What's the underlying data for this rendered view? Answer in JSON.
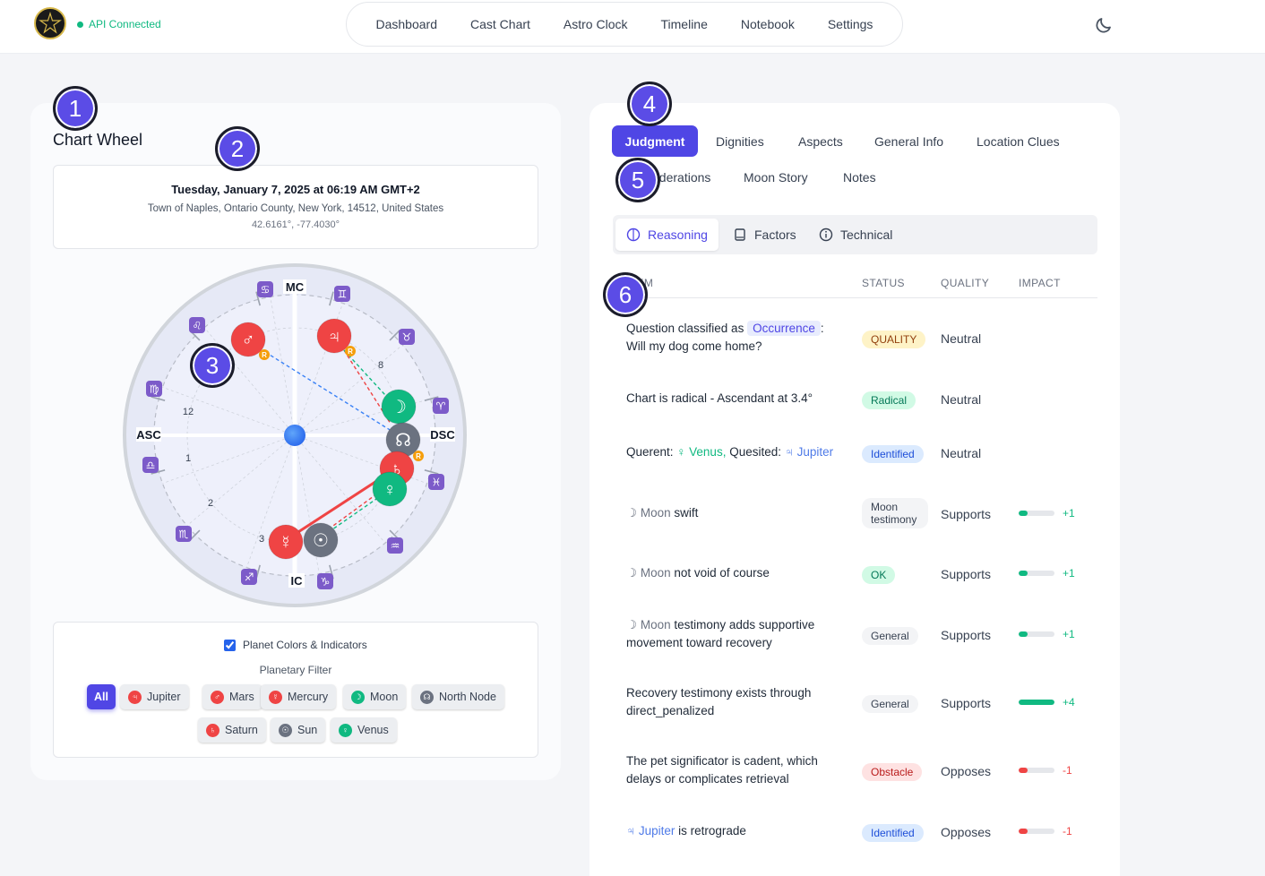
{
  "app": {
    "api_status": "API Connected",
    "nav": [
      "Dashboard",
      "Cast Chart",
      "Astro Clock",
      "Timeline",
      "Notebook",
      "Settings"
    ],
    "theme_icon": "moon-icon"
  },
  "chart": {
    "title": "Chart Wheel",
    "date": "Tuesday, January 7, 2025 at 06:19 AM GMT+2",
    "location": "Town of Naples, Ontario County, New York, 14512, United States",
    "coords": "42.6161°, -77.4030°",
    "angles": {
      "mc": "MC",
      "ic": "IC",
      "asc": "ASC",
      "dsc": "DSC"
    },
    "houses": [
      "12",
      "1",
      "2",
      "3",
      "8"
    ],
    "planets": [
      {
        "name": "Mars",
        "glyph": "♂",
        "color": "#ef4444",
        "retro": true
      },
      {
        "name": "Jupiter",
        "glyph": "♃",
        "color": "#ef4444",
        "retro": true
      },
      {
        "name": "Moon",
        "glyph": "☽",
        "color": "#10b981",
        "retro": false
      },
      {
        "name": "North Node",
        "glyph": "☊",
        "color": "#6b7280",
        "retro": false
      },
      {
        "name": "Saturn",
        "glyph": "♄",
        "color": "#ef4444",
        "retro": true
      },
      {
        "name": "Venus",
        "glyph": "♀",
        "color": "#10b981",
        "retro": false
      },
      {
        "name": "Mercury",
        "glyph": "☿",
        "color": "#ef4444",
        "retro": false
      },
      {
        "name": "Sun",
        "glyph": "☉",
        "color": "#6b7280",
        "retro": false
      }
    ],
    "zodiac": [
      "♋",
      "♊",
      "♉",
      "♈",
      "♓",
      "♒",
      "♑",
      "♐",
      "♏",
      "♎",
      "♍",
      "♌"
    ],
    "retro_label": "R",
    "planet_colors_label": "Planet Colors & Indicators",
    "planetary_filter_label": "Planetary Filter",
    "filter_all": "All",
    "filters": [
      {
        "label": "Jupiter",
        "glyph": "♃",
        "color": "#ef4444"
      },
      {
        "label": "Mars",
        "glyph": "♂",
        "color": "#ef4444"
      },
      {
        "label": "Mercury",
        "glyph": "☿",
        "color": "#ef4444"
      },
      {
        "label": "Moon",
        "glyph": "☽",
        "color": "#10b981"
      },
      {
        "label": "North Node",
        "glyph": "☊",
        "color": "#6b7280"
      },
      {
        "label": "Saturn",
        "glyph": "♄",
        "color": "#ef4444"
      },
      {
        "label": "Sun",
        "glyph": "☉",
        "color": "#6b7280"
      },
      {
        "label": "Venus",
        "glyph": "♀",
        "color": "#10b981"
      }
    ]
  },
  "tabs": {
    "active": "Judgment",
    "row1": [
      "Dignities",
      "Aspects",
      "General Info",
      "Location Clues"
    ],
    "row2": [
      "Considerations",
      "Moon Story",
      "Notes"
    ]
  },
  "subtabs": [
    "Reasoning",
    "Factors",
    "Technical"
  ],
  "table": {
    "headers": [
      "ITEM",
      "STATUS",
      "QUALITY",
      "IMPACT"
    ],
    "rows": [
      {
        "pre": "Question classified as ",
        "hl": "Occurrence",
        "post": ": Will my dog come home?",
        "status": "QUALITY",
        "status_bg": "#fef3c7",
        "status_fg": "#92400e",
        "quality": "Neutral",
        "impact": null,
        "impact_label": ""
      },
      {
        "text": "Chart is radical - Ascendant at 3.4°",
        "status": "Radical",
        "status_bg": "#d1fae5",
        "status_fg": "#047857",
        "quality": "Neutral",
        "impact": null,
        "impact_label": ""
      },
      {
        "querent_label": "Querent: ",
        "querent": "♀ Venus,",
        "quesited_label": " Quesited: ",
        "quesited": "♃ Jupiter",
        "status": "Identified",
        "status_bg": "#dbeafe",
        "status_fg": "#1d4ed8",
        "quality": "Neutral",
        "impact": null,
        "impact_label": ""
      },
      {
        "moon": "☽ Moon",
        "text": " swift",
        "status": "Moon testimony",
        "status_bg": "#f3f4f6",
        "status_fg": "#374151",
        "quality": "Supports",
        "impact": 0.25,
        "impact_label": "+1",
        "impact_color": "#10b981"
      },
      {
        "moon": "☽ Moon",
        "text": " not void of course",
        "status": "OK",
        "status_bg": "#d1fae5",
        "status_fg": "#047857",
        "quality": "Supports",
        "impact": 0.25,
        "impact_label": "+1",
        "impact_color": "#10b981"
      },
      {
        "moon": "☽ Moon",
        "text": " testimony adds supportive movement toward recovery",
        "status": "General",
        "status_bg": "#f3f4f6",
        "status_fg": "#374151",
        "quality": "Supports",
        "impact": 0.25,
        "impact_label": "+1",
        "impact_color": "#10b981"
      },
      {
        "text": "Recovery testimony exists through direct_penalized",
        "status": "General",
        "status_bg": "#f3f4f6",
        "status_fg": "#374151",
        "quality": "Supports",
        "impact": 1.0,
        "impact_label": "+4",
        "impact_color": "#10b981"
      },
      {
        "text": "The pet significator is cadent, which delays or complicates retrieval",
        "status": "Obstacle",
        "status_bg": "#fee2e2",
        "status_fg": "#b91c1c",
        "quality": "Opposes",
        "impact": 0.25,
        "impact_label": "-1",
        "impact_color": "#ef4444"
      },
      {
        "jup": "♃ Jupiter",
        "text": " is retrograde",
        "status": "Identified",
        "status_bg": "#dbeafe",
        "status_fg": "#1d4ed8",
        "quality": "Opposes",
        "impact": 0.25,
        "impact_label": "-1",
        "impact_color": "#ef4444"
      }
    ]
  },
  "callouts": [
    "1",
    "2",
    "3",
    "4",
    "5",
    "6"
  ]
}
